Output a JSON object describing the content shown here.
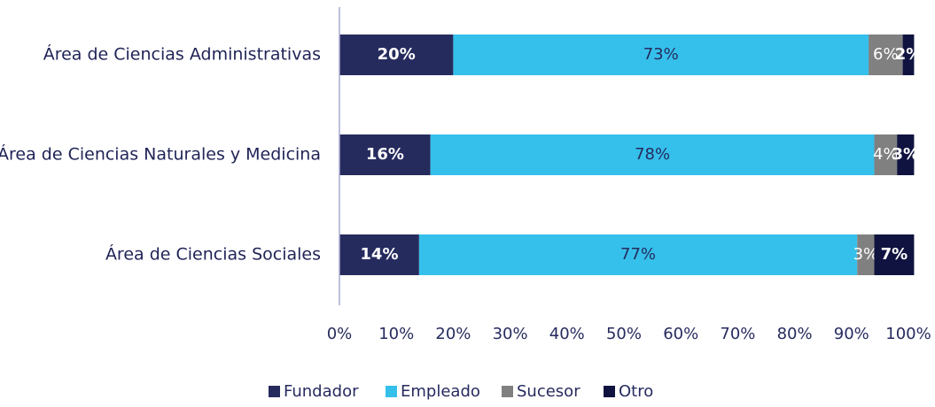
{
  "chart_data": {
    "type": "stacked-bar-horizontal",
    "categories": [
      "Área de Ciencias Administrativas",
      "Área de Ciencias Naturales y Medicina",
      "Área de Ciencias Sociales"
    ],
    "series": [
      {
        "name": "Fundador",
        "color": "#262b5e",
        "values": [
          20,
          16,
          14
        ],
        "value_labels": [
          "20%",
          "16%",
          "14%"
        ]
      },
      {
        "name": "Empleado",
        "color": "#35c0eb",
        "values": [
          73,
          78,
          77
        ],
        "value_labels": [
          "73%",
          "78%",
          "77%"
        ]
      },
      {
        "name": "Sucesor",
        "color": "#808080",
        "values": [
          6,
          4,
          3
        ],
        "value_labels": [
          "6%",
          "4%",
          "3%"
        ]
      },
      {
        "name": "Otro",
        "color": "#10133f",
        "values": [
          2,
          3,
          7
        ],
        "value_labels": [
          "2%",
          "3%",
          "7%"
        ]
      }
    ],
    "xlim": [
      0,
      100
    ],
    "xticks": [
      {
        "value": 0,
        "label": "0%"
      },
      {
        "value": 10,
        "label": "10%"
      },
      {
        "value": 20,
        "label": "20%"
      },
      {
        "value": 30,
        "label": "30%"
      },
      {
        "value": 40,
        "label": "40%"
      },
      {
        "value": 50,
        "label": "50%"
      },
      {
        "value": 60,
        "label": "60%"
      },
      {
        "value": 70,
        "label": "70%"
      },
      {
        "value": 80,
        "label": "80%"
      },
      {
        "value": 90,
        "label": "90%"
      },
      {
        "value": 100,
        "label": "100%"
      }
    ],
    "legend": "bottom"
  }
}
